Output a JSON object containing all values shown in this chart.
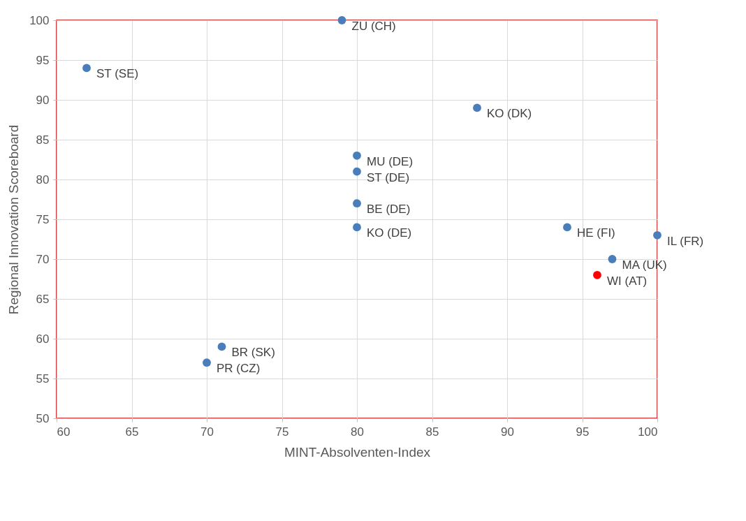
{
  "chart_data": {
    "type": "scatter",
    "xlabel": "MINT-Absolventen-Index",
    "ylabel": "Regional Innovation Scoreboard",
    "x": [
      62,
      79,
      88,
      80,
      80,
      80,
      80,
      94,
      100,
      97,
      96,
      71,
      70
    ],
    "series": [
      {
        "colors": [
          "#4a7ebb",
          "#4a7ebb",
          "#4a7ebb",
          "#4a7ebb",
          "#4a7ebb",
          "#4a7ebb",
          "#4a7ebb",
          "#4a7ebb",
          "#4a7ebb",
          "#4a7ebb",
          "#ff0000",
          "#4a7ebb",
          "#4a7ebb"
        ],
        "values": [
          94,
          100,
          89,
          83,
          81,
          77,
          74,
          74,
          73,
          70,
          68,
          59,
          57
        ]
      }
    ],
    "annotations": [
      {
        "text": "ST (SE)",
        "x": 62,
        "y": 94
      },
      {
        "text": "ZU (CH)",
        "x": 79,
        "y": 100
      },
      {
        "text": "KO (DK)",
        "x": 88,
        "y": 89
      },
      {
        "text": "MU (DE)",
        "x": 80,
        "y": 83
      },
      {
        "text": "ST (DE)",
        "x": 80,
        "y": 81
      },
      {
        "text": "BE (DE)",
        "x": 80,
        "y": 77
      },
      {
        "text": "KO (DE)",
        "x": 80,
        "y": 74
      },
      {
        "text": "HE (FI)",
        "x": 94,
        "y": 74
      },
      {
        "text": "IL (FR)",
        "x": 100,
        "y": 73
      },
      {
        "text": "MA (UK)",
        "x": 97,
        "y": 70
      },
      {
        "text": "WI (AT)",
        "x": 96,
        "y": 68
      },
      {
        "text": "BR (SK)",
        "x": 71,
        "y": 59
      },
      {
        "text": "PR (CZ)",
        "x": 70,
        "y": 57
      }
    ],
    "xlim": [
      60,
      100
    ],
    "xticks": [
      60,
      65,
      70,
      75,
      80,
      85,
      90,
      95,
      100
    ],
    "ylim": [
      50,
      100
    ],
    "yticks": [
      50,
      55,
      60,
      65,
      70,
      75,
      80,
      85,
      90,
      95,
      100
    ],
    "grid": true,
    "marker": "circle"
  }
}
